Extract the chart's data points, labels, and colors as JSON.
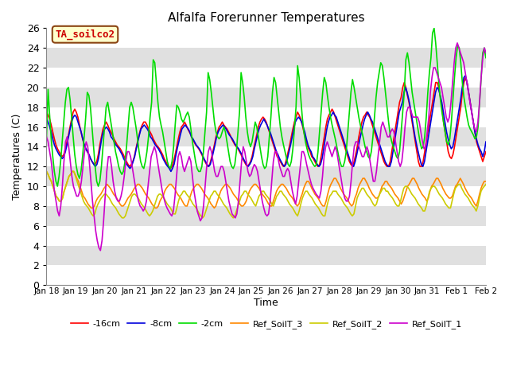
{
  "title": "Alfalfa Forerunner Temperatures",
  "xlabel": "Time",
  "ylabel": "Temperatures (C)",
  "annotation_text": "TA_soilco2",
  "annotation_bg": "#ffffcc",
  "annotation_border": "#8B4513",
  "annotation_text_color": "#cc0000",
  "ylim": [
    0,
    26
  ],
  "yticks": [
    0,
    2,
    4,
    6,
    8,
    10,
    12,
    14,
    16,
    18,
    20,
    22,
    24,
    26
  ],
  "legend_labels": [
    "-16cm",
    "-8cm",
    "-2cm",
    "Ref_SoilT_3",
    "Ref_SoilT_2",
    "Ref_SoilT_1"
  ],
  "line_colors": [
    "#ff0000",
    "#0000dd",
    "#00dd00",
    "#ff8800",
    "#cccc00",
    "#cc00cc"
  ],
  "xtick_labels": [
    "Jan 18",
    "Jan 19",
    "Jan 20",
    "Jan 21",
    "Jan 22",
    "Jan 23",
    "Jan 24",
    "Jan 25",
    "Jan 26",
    "Jan 27",
    "Jan 28",
    "Jan 29",
    "Jan 30",
    "Jan 31",
    "Feb 1",
    "Feb 2"
  ],
  "n_points": 320,
  "band_colors": [
    "#ffffff",
    "#e0e0e0"
  ],
  "series_m16cm": [
    17.5,
    17.2,
    16.8,
    16.2,
    15.5,
    14.8,
    14.2,
    13.8,
    13.5,
    13.2,
    13.0,
    13.2,
    13.8,
    14.5,
    15.2,
    16.0,
    16.8,
    17.5,
    17.8,
    17.5,
    17.0,
    16.2,
    15.5,
    14.8,
    14.2,
    13.8,
    13.5,
    13.2,
    12.8,
    12.5,
    12.3,
    12.2,
    12.5,
    13.2,
    14.2,
    15.0,
    15.8,
    16.2,
    16.5,
    16.2,
    15.8,
    15.5,
    15.2,
    14.8,
    14.5,
    14.2,
    14.0,
    13.8,
    13.5,
    13.2,
    12.8,
    12.5,
    12.2,
    12.0,
    12.2,
    12.5,
    13.0,
    13.8,
    14.5,
    15.2,
    15.8,
    16.2,
    16.5,
    16.5,
    16.2,
    15.8,
    15.5,
    15.2,
    14.8,
    14.5,
    14.2,
    14.0,
    13.8,
    13.5,
    13.2,
    12.8,
    12.5,
    12.2,
    12.0,
    11.8,
    12.0,
    12.5,
    13.2,
    14.0,
    14.8,
    15.5,
    16.0,
    16.2,
    16.5,
    16.2,
    15.8,
    15.5,
    15.2,
    14.8,
    14.5,
    14.2,
    14.0,
    13.8,
    13.5,
    13.2,
    12.8,
    12.5,
    12.2,
    12.0,
    12.2,
    12.8,
    13.5,
    14.2,
    15.0,
    15.5,
    16.0,
    16.2,
    16.5,
    16.2,
    16.0,
    15.8,
    15.5,
    15.2,
    14.8,
    14.5,
    14.2,
    14.0,
    13.8,
    13.5,
    13.2,
    12.8,
    12.5,
    12.2,
    12.0,
    12.2,
    12.5,
    13.0,
    13.8,
    14.5,
    15.2,
    16.0,
    16.5,
    16.8,
    17.0,
    16.8,
    16.5,
    16.0,
    15.5,
    15.0,
    14.5,
    14.0,
    13.5,
    13.0,
    12.8,
    12.5,
    12.2,
    12.0,
    12.2,
    12.8,
    13.5,
    14.2,
    15.0,
    15.8,
    16.5,
    17.0,
    17.5,
    17.2,
    16.8,
    16.2,
    15.5,
    14.8,
    14.2,
    13.8,
    13.5,
    13.0,
    12.8,
    12.5,
    12.2,
    12.0,
    12.2,
    13.0,
    14.0,
    15.0,
    16.0,
    16.8,
    17.2,
    17.5,
    17.8,
    17.5,
    17.0,
    16.5,
    16.0,
    15.5,
    15.0,
    14.5,
    14.0,
    13.5,
    13.0,
    12.5,
    12.2,
    12.0,
    12.5,
    13.2,
    14.0,
    15.0,
    15.8,
    16.5,
    17.0,
    17.2,
    17.5,
    17.2,
    17.0,
    16.5,
    16.0,
    15.5,
    15.0,
    14.5,
    14.0,
    13.5,
    13.0,
    12.5,
    12.2,
    12.0,
    12.0,
    12.5,
    13.5,
    14.5,
    15.5,
    16.5,
    17.5,
    18.5,
    19.0,
    20.0,
    20.5,
    20.0,
    19.2,
    18.5,
    17.5,
    16.5,
    15.5,
    14.5,
    13.5,
    12.5,
    12.0,
    12.0,
    12.5,
    13.5,
    14.5,
    15.5,
    16.5,
    17.5,
    18.5,
    19.5,
    20.5,
    20.5,
    20.0,
    19.0,
    18.0,
    16.5,
    15.5,
    14.5,
    13.5,
    13.0,
    12.8,
    13.2,
    14.0,
    15.0,
    16.0,
    17.0,
    18.0,
    19.5,
    20.5,
    21.0,
    20.5,
    19.5,
    18.5,
    17.5,
    16.5,
    15.5,
    14.5,
    14.0,
    13.5,
    13.0,
    12.5,
    13.0,
    13.5
  ],
  "series_m8cm": [
    17.0,
    16.5,
    16.0,
    15.5,
    14.8,
    14.2,
    13.8,
    13.5,
    13.2,
    13.0,
    12.8,
    13.0,
    13.5,
    14.2,
    15.0,
    15.8,
    16.5,
    17.0,
    17.2,
    17.0,
    16.5,
    16.0,
    15.5,
    14.8,
    14.2,
    13.8,
    13.5,
    13.2,
    12.8,
    12.5,
    12.2,
    12.0,
    12.2,
    12.8,
    13.8,
    14.8,
    15.5,
    15.8,
    16.0,
    15.8,
    15.5,
    15.0,
    14.8,
    14.5,
    14.2,
    14.0,
    13.8,
    13.5,
    13.2,
    12.8,
    12.5,
    12.2,
    12.0,
    11.8,
    12.0,
    12.5,
    13.0,
    13.8,
    14.5,
    15.2,
    15.8,
    16.0,
    16.2,
    16.0,
    15.8,
    15.5,
    15.0,
    14.8,
    14.5,
    14.2,
    14.0,
    13.8,
    13.5,
    13.2,
    12.8,
    12.5,
    12.2,
    12.0,
    11.8,
    11.5,
    11.8,
    12.2,
    13.0,
    13.8,
    14.5,
    15.2,
    15.8,
    16.0,
    16.2,
    16.0,
    15.8,
    15.5,
    15.0,
    14.8,
    14.5,
    14.2,
    14.0,
    13.8,
    13.5,
    13.2,
    12.8,
    12.5,
    12.2,
    12.0,
    12.2,
    12.8,
    13.5,
    14.2,
    15.0,
    15.5,
    15.8,
    16.0,
    16.2,
    16.0,
    15.8,
    15.5,
    15.2,
    15.0,
    14.8,
    14.5,
    14.2,
    14.0,
    13.8,
    13.5,
    13.2,
    12.8,
    12.5,
    12.2,
    12.0,
    12.2,
    12.5,
    13.0,
    13.8,
    14.5,
    15.2,
    15.8,
    16.2,
    16.5,
    16.8,
    16.5,
    16.2,
    15.8,
    15.5,
    15.0,
    14.5,
    14.0,
    13.5,
    13.2,
    12.8,
    12.5,
    12.2,
    12.0,
    12.2,
    12.8,
    13.5,
    14.2,
    15.0,
    15.8,
    16.5,
    16.8,
    17.0,
    16.8,
    16.5,
    16.0,
    15.5,
    14.8,
    14.2,
    13.8,
    13.5,
    13.0,
    12.8,
    12.5,
    12.2,
    12.0,
    12.2,
    12.8,
    13.8,
    14.8,
    15.8,
    16.5,
    17.0,
    17.2,
    17.5,
    17.2,
    17.0,
    16.5,
    16.0,
    15.5,
    15.0,
    14.5,
    14.0,
    13.5,
    13.0,
    12.5,
    12.2,
    12.0,
    12.5,
    13.2,
    14.0,
    14.8,
    15.5,
    16.2,
    16.8,
    17.2,
    17.5,
    17.2,
    16.8,
    16.5,
    16.0,
    15.5,
    15.0,
    14.5,
    14.0,
    13.5,
    13.0,
    12.5,
    12.2,
    12.0,
    12.0,
    12.5,
    13.5,
    14.5,
    15.5,
    16.5,
    17.5,
    18.0,
    18.5,
    19.5,
    20.0,
    19.5,
    18.8,
    18.0,
    17.0,
    16.0,
    15.0,
    14.2,
    13.5,
    12.8,
    12.2,
    12.0,
    12.5,
    13.5,
    14.5,
    15.5,
    16.5,
    17.5,
    18.5,
    19.5,
    20.0,
    19.8,
    19.2,
    18.5,
    17.5,
    16.5,
    15.5,
    14.8,
    14.2,
    13.8,
    14.0,
    14.8,
    15.8,
    16.8,
    17.8,
    18.8,
    20.0,
    21.0,
    21.2,
    20.5,
    19.5,
    18.5,
    17.5,
    16.5,
    15.5,
    14.8,
    14.2,
    13.8,
    13.5,
    13.0,
    13.5,
    14.5
  ],
  "series_m2cm": [
    15.0,
    19.8,
    17.2,
    14.8,
    13.0,
    11.5,
    10.5,
    10.0,
    11.0,
    12.5,
    14.5,
    16.5,
    18.5,
    19.8,
    20.0,
    18.8,
    17.0,
    15.0,
    13.2,
    12.0,
    11.2,
    10.8,
    11.5,
    13.0,
    15.0,
    17.0,
    19.5,
    19.2,
    18.0,
    16.0,
    14.0,
    12.0,
    10.5,
    10.0,
    10.5,
    12.0,
    14.0,
    16.0,
    18.0,
    18.5,
    17.5,
    16.5,
    15.5,
    14.5,
    13.5,
    12.8,
    12.0,
    11.5,
    11.2,
    11.5,
    12.5,
    14.0,
    16.0,
    18.0,
    18.5,
    18.0,
    17.0,
    16.0,
    14.8,
    13.5,
    12.5,
    12.0,
    11.8,
    12.5,
    13.5,
    15.0,
    17.0,
    18.5,
    22.8,
    22.5,
    20.5,
    18.5,
    17.0,
    16.2,
    15.5,
    14.5,
    13.5,
    12.5,
    12.0,
    11.8,
    12.5,
    14.0,
    16.2,
    18.2,
    18.0,
    17.5,
    16.8,
    16.5,
    16.8,
    17.2,
    17.5,
    17.0,
    15.8,
    14.5,
    13.5,
    12.5,
    11.8,
    11.5,
    11.5,
    12.0,
    13.5,
    15.5,
    17.5,
    21.5,
    20.8,
    19.5,
    18.0,
    16.5,
    15.5,
    15.0,
    14.8,
    15.0,
    15.5,
    16.0,
    15.5,
    14.5,
    13.5,
    12.5,
    12.0,
    11.8,
    12.2,
    13.5,
    15.5,
    17.5,
    21.5,
    20.5,
    19.0,
    17.0,
    15.5,
    14.5,
    14.0,
    14.5,
    15.5,
    16.5,
    16.0,
    15.0,
    14.0,
    13.0,
    12.2,
    11.8,
    12.0,
    13.0,
    15.0,
    17.0,
    19.5,
    21.0,
    20.5,
    19.0,
    17.5,
    16.0,
    15.0,
    14.2,
    13.5,
    12.8,
    12.2,
    12.0,
    12.5,
    13.8,
    15.8,
    18.0,
    22.2,
    21.0,
    19.0,
    17.0,
    15.5,
    14.5,
    13.8,
    13.2,
    12.8,
    12.5,
    12.2,
    12.0,
    12.2,
    13.5,
    15.5,
    17.5,
    19.5,
    21.0,
    20.5,
    19.2,
    18.0,
    17.0,
    16.2,
    15.5,
    14.8,
    14.0,
    13.2,
    12.5,
    12.0,
    12.0,
    12.5,
    13.5,
    15.5,
    17.5,
    19.5,
    20.8,
    20.0,
    19.0,
    18.0,
    17.0,
    16.2,
    15.5,
    14.8,
    14.0,
    13.5,
    13.0,
    12.8,
    13.5,
    15.0,
    17.0,
    19.0,
    20.5,
    21.5,
    22.5,
    22.2,
    21.0,
    19.5,
    18.0,
    16.5,
    15.2,
    14.5,
    14.0,
    13.5,
    13.0,
    12.8,
    13.5,
    15.5,
    17.5,
    19.5,
    22.8,
    23.5,
    22.5,
    21.0,
    19.5,
    18.5,
    17.5,
    16.5,
    15.5,
    14.5,
    13.8,
    14.0,
    15.0,
    17.0,
    19.5,
    21.5,
    23.0,
    25.5,
    26.0,
    24.5,
    22.5,
    20.5,
    18.8,
    17.5,
    16.5,
    15.5,
    14.5,
    14.2,
    14.8,
    16.5,
    18.8,
    21.0,
    23.0,
    24.2,
    24.0,
    22.5,
    20.5,
    19.0,
    18.0,
    17.0,
    16.2,
    15.8,
    15.5,
    15.2,
    14.8,
    15.0,
    16.0,
    18.5,
    21.0,
    23.5,
    24.0,
    23.0
  ],
  "series_ref3": [
    11.5,
    11.2,
    10.8,
    10.5,
    10.0,
    9.5,
    9.0,
    8.8,
    8.5,
    8.5,
    8.8,
    9.5,
    10.0,
    10.5,
    11.0,
    11.2,
    11.5,
    11.5,
    11.2,
    10.8,
    10.5,
    10.0,
    9.5,
    9.0,
    8.8,
    8.5,
    8.2,
    8.0,
    7.8,
    7.8,
    8.0,
    8.5,
    8.8,
    9.0,
    9.2,
    9.5,
    9.8,
    10.0,
    10.2,
    10.0,
    9.8,
    9.5,
    9.2,
    9.0,
    8.8,
    8.5,
    8.2,
    8.0,
    8.0,
    8.2,
    8.5,
    8.8,
    9.0,
    9.2,
    9.5,
    9.8,
    10.0,
    10.2,
    10.2,
    10.0,
    9.8,
    9.5,
    9.2,
    9.0,
    8.8,
    8.5,
    8.2,
    8.0,
    7.8,
    7.8,
    8.0,
    8.5,
    8.8,
    9.0,
    9.5,
    9.8,
    10.0,
    10.2,
    10.2,
    10.0,
    9.8,
    9.5,
    9.2,
    9.0,
    8.8,
    8.5,
    8.2,
    8.0,
    8.0,
    8.5,
    9.0,
    9.5,
    9.8,
    10.0,
    10.2,
    10.2,
    10.0,
    9.8,
    9.5,
    9.2,
    9.0,
    8.8,
    8.5,
    8.2,
    8.0,
    7.8,
    8.0,
    8.5,
    9.0,
    9.5,
    9.8,
    10.0,
    10.2,
    10.2,
    10.0,
    9.8,
    9.5,
    9.2,
    9.0,
    8.8,
    8.5,
    8.2,
    8.0,
    8.0,
    8.2,
    8.5,
    9.0,
    9.5,
    9.8,
    10.0,
    10.2,
    10.2,
    10.0,
    9.8,
    9.5,
    9.2,
    9.0,
    8.8,
    8.5,
    8.2,
    8.0,
    8.0,
    8.5,
    9.0,
    9.5,
    9.8,
    10.0,
    10.2,
    10.2,
    10.0,
    9.8,
    9.5,
    9.2,
    9.0,
    8.8,
    8.5,
    8.2,
    8.0,
    8.2,
    8.8,
    9.2,
    9.8,
    10.2,
    10.5,
    10.5,
    10.2,
    9.8,
    9.5,
    9.2,
    9.0,
    8.8,
    8.5,
    8.2,
    8.0,
    8.0,
    8.5,
    9.2,
    9.8,
    10.2,
    10.5,
    10.8,
    10.8,
    10.5,
    10.2,
    9.8,
    9.5,
    9.2,
    9.0,
    8.8,
    8.5,
    8.2,
    8.0,
    8.2,
    8.8,
    9.2,
    9.8,
    10.2,
    10.5,
    10.8,
    10.8,
    10.5,
    10.2,
    9.8,
    9.5,
    9.2,
    9.0,
    8.8,
    8.8,
    9.0,
    9.5,
    10.0,
    10.2,
    10.5,
    10.5,
    10.2,
    10.0,
    9.8,
    9.5,
    9.2,
    9.0,
    8.8,
    8.5,
    8.2,
    8.5,
    9.0,
    9.5,
    10.0,
    10.2,
    10.5,
    10.8,
    10.8,
    10.5,
    10.2,
    9.8,
    9.5,
    9.2,
    9.0,
    8.8,
    8.5,
    8.8,
    9.5,
    10.0,
    10.2,
    10.5,
    10.8,
    10.8,
    10.5,
    10.2,
    9.8,
    9.5,
    9.2,
    9.0,
    8.8,
    8.8,
    9.0,
    9.5,
    10.0,
    10.2,
    10.5,
    10.8,
    10.5,
    10.2,
    9.8,
    9.5,
    9.2,
    9.0,
    8.8,
    8.5,
    8.2,
    8.0,
    8.5,
    9.2,
    9.8,
    10.2,
    10.5,
    10.5
  ],
  "series_ref2": [
    11.5,
    11.2,
    10.8,
    10.5,
    10.0,
    9.5,
    9.0,
    8.8,
    8.5,
    8.5,
    8.8,
    9.5,
    10.0,
    10.5,
    11.0,
    11.2,
    11.5,
    11.5,
    11.0,
    10.5,
    10.0,
    9.5,
    9.0,
    8.5,
    8.2,
    8.0,
    7.8,
    7.5,
    7.2,
    7.0,
    7.2,
    7.8,
    8.2,
    8.5,
    8.8,
    9.0,
    9.2,
    9.2,
    9.0,
    8.8,
    8.5,
    8.2,
    8.0,
    7.8,
    7.5,
    7.2,
    7.0,
    6.8,
    6.8,
    7.0,
    7.5,
    8.0,
    8.5,
    9.0,
    9.2,
    9.2,
    9.0,
    8.8,
    8.5,
    8.2,
    8.0,
    7.8,
    7.5,
    7.2,
    7.0,
    7.2,
    7.5,
    8.0,
    8.5,
    9.0,
    9.2,
    9.2,
    9.0,
    8.8,
    8.5,
    8.2,
    8.0,
    7.8,
    7.5,
    7.2,
    7.2,
    7.8,
    8.5,
    9.0,
    9.2,
    9.5,
    9.5,
    9.2,
    9.0,
    8.8,
    8.5,
    8.2,
    8.0,
    7.8,
    7.5,
    7.2,
    7.0,
    6.8,
    7.0,
    7.5,
    8.0,
    8.5,
    9.0,
    9.2,
    9.5,
    9.5,
    9.2,
    9.0,
    8.8,
    8.5,
    8.2,
    8.0,
    7.8,
    7.5,
    7.2,
    7.0,
    6.8,
    7.0,
    7.5,
    8.0,
    8.5,
    9.0,
    9.2,
    9.5,
    9.5,
    9.2,
    9.0,
    8.8,
    8.5,
    8.2,
    8.0,
    8.5,
    9.0,
    9.2,
    9.5,
    9.5,
    9.2,
    9.0,
    8.8,
    8.5,
    8.2,
    8.0,
    8.5,
    9.0,
    9.2,
    9.5,
    9.5,
    9.2,
    9.0,
    8.8,
    8.5,
    8.2,
    8.0,
    7.8,
    7.5,
    7.2,
    7.0,
    7.5,
    8.2,
    8.8,
    9.2,
    9.5,
    9.5,
    9.2,
    9.0,
    8.8,
    8.5,
    8.2,
    8.0,
    7.8,
    7.5,
    7.2,
    7.0,
    7.0,
    7.8,
    8.5,
    9.0,
    9.2,
    9.5,
    9.5,
    9.5,
    9.2,
    9.0,
    8.8,
    8.5,
    8.2,
    8.0,
    7.8,
    7.5,
    7.2,
    7.0,
    7.2,
    8.0,
    8.8,
    9.2,
    9.5,
    9.8,
    9.8,
    9.5,
    9.2,
    9.0,
    8.8,
    8.5,
    8.2,
    8.0,
    8.2,
    8.8,
    9.2,
    9.5,
    9.8,
    9.8,
    9.5,
    9.5,
    9.2,
    9.0,
    8.8,
    8.5,
    8.2,
    8.0,
    8.0,
    8.5,
    9.2,
    9.8,
    10.0,
    10.0,
    9.8,
    9.5,
    9.2,
    9.0,
    8.8,
    8.5,
    8.2,
    8.0,
    7.8,
    7.5,
    7.5,
    8.0,
    8.8,
    9.5,
    9.8,
    10.0,
    10.0,
    9.8,
    9.5,
    9.2,
    9.0,
    8.8,
    8.5,
    8.2,
    8.0,
    7.8,
    7.8,
    8.5,
    9.2,
    9.8,
    10.0,
    10.2,
    10.2,
    9.8,
    9.5,
    9.2,
    9.0,
    8.8,
    8.5,
    8.2,
    8.0,
    7.8,
    7.5,
    8.0,
    8.8,
    9.5,
    9.8,
    10.0,
    10.2
  ],
  "series_ref1": [
    15.0,
    14.5,
    13.5,
    12.5,
    11.0,
    9.5,
    8.5,
    7.5,
    7.0,
    8.0,
    10.0,
    12.5,
    14.5,
    15.0,
    14.0,
    12.5,
    11.0,
    10.0,
    9.5,
    9.0,
    9.0,
    9.5,
    10.5,
    12.0,
    13.5,
    14.5,
    14.0,
    12.5,
    10.5,
    8.5,
    7.0,
    5.5,
    4.5,
    3.8,
    3.5,
    4.5,
    6.5,
    9.0,
    11.5,
    13.0,
    13.0,
    12.0,
    10.5,
    9.5,
    8.8,
    8.5,
    8.5,
    9.0,
    9.8,
    11.0,
    12.5,
    13.5,
    13.5,
    13.0,
    12.0,
    11.0,
    10.0,
    9.2,
    8.5,
    8.0,
    7.8,
    7.5,
    7.8,
    8.5,
    10.0,
    11.5,
    13.0,
    13.5,
    14.0,
    13.5,
    12.5,
    11.5,
    10.5,
    9.5,
    8.8,
    8.2,
    7.8,
    7.5,
    7.2,
    7.0,
    7.5,
    9.0,
    11.0,
    13.0,
    13.5,
    13.0,
    12.0,
    11.5,
    12.0,
    12.5,
    13.0,
    12.5,
    11.0,
    9.5,
    8.5,
    7.5,
    7.0,
    6.5,
    6.8,
    8.0,
    10.0,
    12.0,
    13.5,
    14.0,
    13.5,
    12.5,
    11.5,
    11.0,
    11.0,
    11.5,
    12.0,
    12.0,
    11.5,
    10.5,
    9.5,
    8.5,
    7.8,
    7.2,
    7.0,
    6.8,
    7.2,
    8.5,
    10.5,
    12.5,
    14.0,
    13.5,
    12.5,
    11.5,
    11.0,
    11.2,
    11.8,
    12.2,
    12.0,
    11.5,
    10.5,
    9.5,
    8.5,
    7.8,
    7.2,
    7.0,
    7.2,
    8.5,
    10.5,
    12.5,
    13.5,
    13.5,
    12.8,
    12.0,
    11.5,
    11.0,
    11.0,
    11.5,
    11.8,
    11.5,
    10.5,
    9.5,
    8.8,
    8.2,
    9.0,
    10.5,
    12.0,
    13.5,
    13.5,
    13.0,
    12.2,
    11.5,
    10.8,
    10.2,
    9.8,
    9.5,
    9.2,
    9.0,
    8.8,
    9.5,
    11.0,
    13.0,
    14.0,
    14.5,
    14.0,
    13.5,
    13.0,
    13.5,
    14.0,
    13.5,
    12.5,
    11.5,
    10.5,
    9.5,
    8.8,
    8.5,
    8.5,
    9.0,
    10.5,
    12.5,
    14.0,
    14.5,
    14.5,
    14.0,
    13.5,
    13.0,
    13.0,
    13.5,
    14.0,
    13.5,
    12.5,
    11.5,
    10.5,
    10.5,
    11.5,
    13.0,
    14.5,
    16.0,
    16.5,
    16.0,
    15.5,
    15.0,
    15.0,
    15.5,
    15.8,
    15.5,
    14.5,
    13.5,
    12.5,
    12.0,
    12.5,
    14.0,
    16.0,
    17.5,
    18.0,
    18.0,
    17.5,
    17.0,
    17.0,
    17.0,
    17.0,
    16.5,
    15.5,
    14.5,
    13.8,
    14.0,
    15.5,
    17.0,
    19.5,
    21.0,
    22.0,
    22.0,
    21.5,
    21.0,
    20.5,
    20.0,
    19.0,
    18.0,
    17.0,
    16.5,
    17.0,
    18.5,
    20.5,
    22.5,
    24.0,
    24.5,
    24.0,
    23.5,
    23.0,
    22.5,
    21.5,
    20.5,
    19.5,
    18.5,
    17.5,
    16.5,
    15.8,
    15.5,
    16.5,
    18.5,
    21.0,
    23.0,
    24.0,
    23.5
  ]
}
